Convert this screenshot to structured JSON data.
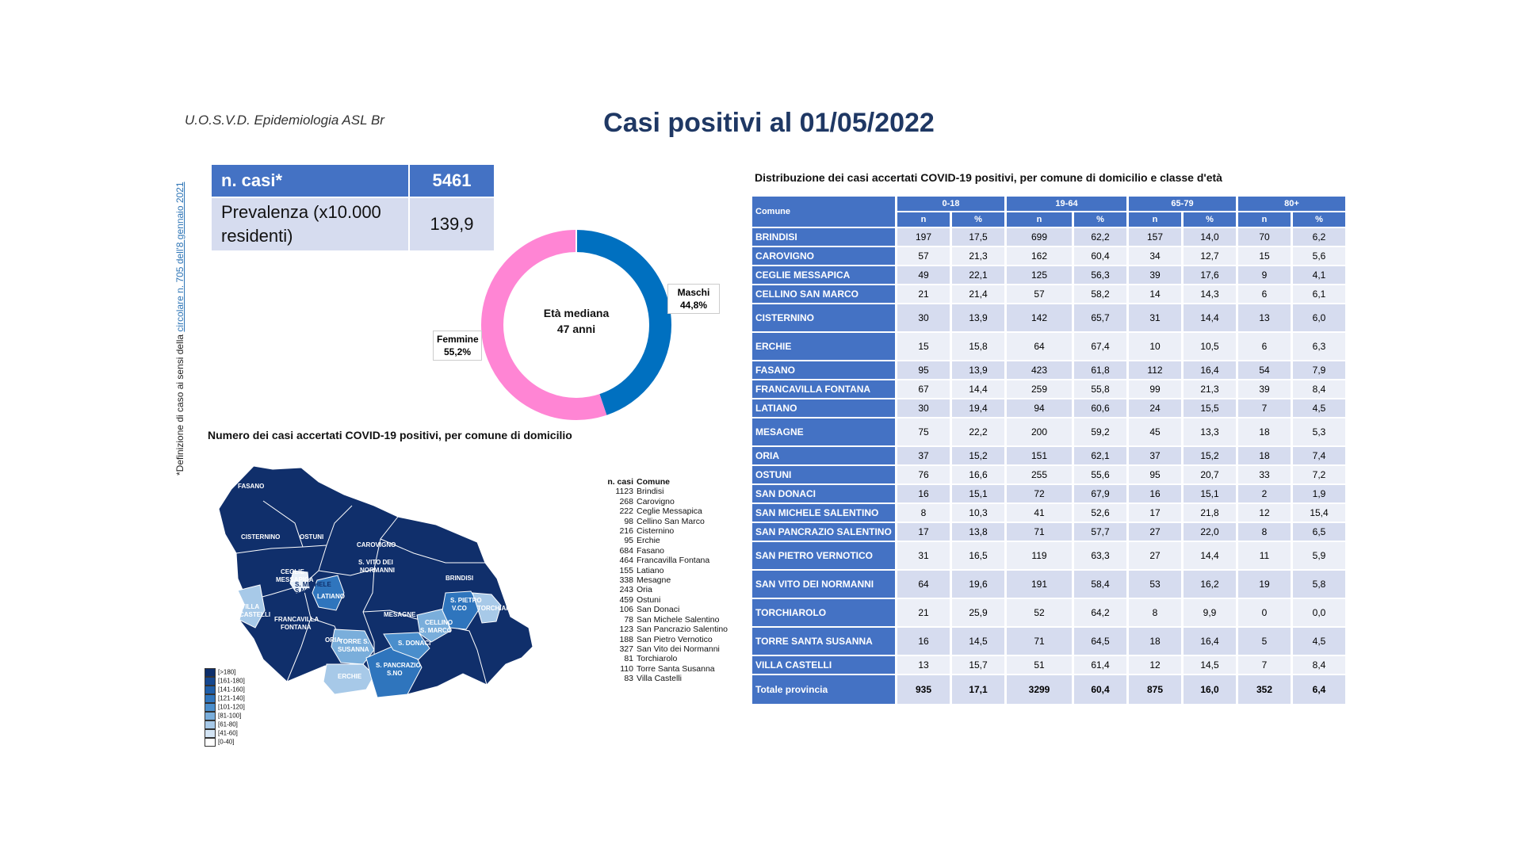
{
  "header": {
    "org": "U.O.S.V.D. Epidemiologia ASL Br",
    "title": "Casi positivi al 01/05/2022"
  },
  "side_note": {
    "prefix": "*Definizione di caso ai sensi della ",
    "link": "circolare n. 705 dell'8 gennaio 2021"
  },
  "summary": {
    "cases_label": "n. casi*",
    "cases_value": "5461",
    "prev_label": "Prevalenza (x10.000 residenti)",
    "prev_value": "139,9"
  },
  "donut": {
    "center_line1": "Età mediana",
    "center_line2": "47 anni",
    "slices": [
      {
        "label": "Maschi",
        "value_text": "44,8%",
        "value": 44.8,
        "color": "#0070c0"
      },
      {
        "label": "Femmine",
        "value_text": "55,2%",
        "value": 55.2,
        "color": "#ff85d4"
      }
    ]
  },
  "map": {
    "title": "Numero dei casi accertati COVID-19 positivi, per comune di domicilio",
    "list_header": {
      "n": "n. casi",
      "comune": "Comune"
    },
    "list": [
      {
        "n": "1123",
        "comune": "Brindisi"
      },
      {
        "n": "268",
        "comune": "Carovigno"
      },
      {
        "n": "222",
        "comune": "Ceglie Messapica"
      },
      {
        "n": "98",
        "comune": "Cellino San Marco"
      },
      {
        "n": "216",
        "comune": "Cisternino"
      },
      {
        "n": "95",
        "comune": "Erchie"
      },
      {
        "n": "684",
        "comune": "Fasano"
      },
      {
        "n": "464",
        "comune": "Francavilla Fontana"
      },
      {
        "n": "155",
        "comune": "Latiano"
      },
      {
        "n": "338",
        "comune": "Mesagne"
      },
      {
        "n": "243",
        "comune": "Oria"
      },
      {
        "n": "459",
        "comune": "Ostuni"
      },
      {
        "n": "106",
        "comune": "San Donaci"
      },
      {
        "n": "78",
        "comune": "San Michele Salentino"
      },
      {
        "n": "123",
        "comune": "San Pancrazio Salentino"
      },
      {
        "n": "188",
        "comune": "San Pietro Vernotico"
      },
      {
        "n": "327",
        "comune": "San Vito dei Normanni"
      },
      {
        "n": "81",
        "comune": "Torchiarolo"
      },
      {
        "n": "110",
        "comune": "Torre Santa Susanna"
      },
      {
        "n": "83",
        "comune": "Villa Castelli"
      }
    ],
    "scale": [
      {
        "label": "[>180]",
        "color": "#0d2e6b"
      },
      {
        "label": "[161-180]",
        "color": "#15478f"
      },
      {
        "label": "[141-160]",
        "color": "#1f5ea8"
      },
      {
        "label": "[121-140]",
        "color": "#2f75bd"
      },
      {
        "label": "[101-120]",
        "color": "#4a8ecc"
      },
      {
        "label": "[81-100]",
        "color": "#7aaedb"
      },
      {
        "label": "[61-80]",
        "color": "#a7c9e8"
      },
      {
        "label": "[41-60]",
        "color": "#d3e4f4"
      },
      {
        "label": "[0-40]",
        "color": "#ffffff"
      }
    ],
    "labels": {
      "fasano": "FASANO",
      "cisternino": "CISTERNINO",
      "ostuni": "OSTUNI",
      "carovigno": "CAROVIGNO",
      "ceglie1": "CEGLIE",
      "ceglie2": "MESSAPICA",
      "svito1": "S. VITO DEI",
      "svito2": "NORMANNI",
      "brindisi": "BRINDISI",
      "smichele1": "S. MICHELE",
      "smichele2": "S.NO",
      "villa1": "VILLA",
      "villa2": "CASTELLI",
      "latiano": "LATIANO",
      "franc1": "FRANCAVILLA",
      "franc2": "FONTANA",
      "mesagne": "MESAGNE",
      "oria": "ORIA",
      "spietro1": "S. PIETRO",
      "spietro2": "V.CO",
      "torchiarolo": "TORCHIAROLO",
      "cellino1": "CELLINO",
      "cellino2": "S. MARCO",
      "torre1": "TORRE S.",
      "torre2": "SUSANNA",
      "sdonaci": "S. DONACI",
      "spancrazio1": "S. PANCRAZIO",
      "spancrazio2": "S.NO",
      "erchie": "ERCHIE"
    }
  },
  "table": {
    "title": "Distribuzione dei casi accertati COVID-19 positivi, per comune di domicilio e classe d'età",
    "comune_header": "Comune",
    "groups": [
      "0-18",
      "19-64",
      "65-79",
      "80+"
    ],
    "sub": [
      "n",
      "%"
    ],
    "rows": [
      {
        "comune": "BRINDISI",
        "vals": [
          "197",
          "17,5",
          "699",
          "62,2",
          "157",
          "14,0",
          "70",
          "6,2"
        ]
      },
      {
        "comune": "CAROVIGNO",
        "vals": [
          "57",
          "21,3",
          "162",
          "60,4",
          "34",
          "12,7",
          "15",
          "5,6"
        ]
      },
      {
        "comune": "CEGLIE MESSAPICA",
        "vals": [
          "49",
          "22,1",
          "125",
          "56,3",
          "39",
          "17,6",
          "9",
          "4,1"
        ]
      },
      {
        "comune": "CELLINO SAN MARCO",
        "vals": [
          "21",
          "21,4",
          "57",
          "58,2",
          "14",
          "14,3",
          "6",
          "6,1"
        ]
      },
      {
        "comune": "CISTERNINO",
        "vals": [
          "30",
          "13,9",
          "142",
          "65,7",
          "31",
          "14,4",
          "13",
          "6,0"
        ]
      },
      {
        "comune": "ERCHIE",
        "vals": [
          "15",
          "15,8",
          "64",
          "67,4",
          "10",
          "10,5",
          "6",
          "6,3"
        ]
      },
      {
        "comune": "FASANO",
        "vals": [
          "95",
          "13,9",
          "423",
          "61,8",
          "112",
          "16,4",
          "54",
          "7,9"
        ]
      },
      {
        "comune": "FRANCAVILLA FONTANA",
        "vals": [
          "67",
          "14,4",
          "259",
          "55,8",
          "99",
          "21,3",
          "39",
          "8,4"
        ]
      },
      {
        "comune": "LATIANO",
        "vals": [
          "30",
          "19,4",
          "94",
          "60,6",
          "24",
          "15,5",
          "7",
          "4,5"
        ]
      },
      {
        "comune": "MESAGNE",
        "vals": [
          "75",
          "22,2",
          "200",
          "59,2",
          "45",
          "13,3",
          "18",
          "5,3"
        ]
      },
      {
        "comune": "ORIA",
        "vals": [
          "37",
          "15,2",
          "151",
          "62,1",
          "37",
          "15,2",
          "18",
          "7,4"
        ]
      },
      {
        "comune": "OSTUNI",
        "vals": [
          "76",
          "16,6",
          "255",
          "55,6",
          "95",
          "20,7",
          "33",
          "7,2"
        ]
      },
      {
        "comune": "SAN DONACI",
        "vals": [
          "16",
          "15,1",
          "72",
          "67,9",
          "16",
          "15,1",
          "2",
          "1,9"
        ]
      },
      {
        "comune": "SAN MICHELE SALENTINO",
        "vals": [
          "8",
          "10,3",
          "41",
          "52,6",
          "17",
          "21,8",
          "12",
          "15,4"
        ]
      },
      {
        "comune": "SAN PANCRAZIO SALENTINO",
        "vals": [
          "17",
          "13,8",
          "71",
          "57,7",
          "27",
          "22,0",
          "8",
          "6,5"
        ]
      },
      {
        "comune": "SAN PIETRO VERNOTICO",
        "vals": [
          "31",
          "16,5",
          "119",
          "63,3",
          "27",
          "14,4",
          "11",
          "5,9"
        ]
      },
      {
        "comune": "SAN VITO DEI NORMANNI",
        "vals": [
          "64",
          "19,6",
          "191",
          "58,4",
          "53",
          "16,2",
          "19",
          "5,8"
        ]
      },
      {
        "comune": "TORCHIAROLO",
        "vals": [
          "21",
          "25,9",
          "52",
          "64,2",
          "8",
          "9,9",
          "0",
          "0,0"
        ]
      },
      {
        "comune": "TORRE SANTA SUSANNA",
        "vals": [
          "16",
          "14,5",
          "71",
          "64,5",
          "18",
          "16,4",
          "5",
          "4,5"
        ]
      },
      {
        "comune": "VILLA CASTELLI",
        "vals": [
          "13",
          "15,7",
          "51",
          "61,4",
          "12",
          "14,5",
          "7",
          "8,4"
        ]
      }
    ],
    "total": {
      "comune": "Totale provincia",
      "vals": [
        "935",
        "17,1",
        "3299",
        "60,4",
        "875",
        "16,0",
        "352",
        "6,4"
      ]
    }
  }
}
